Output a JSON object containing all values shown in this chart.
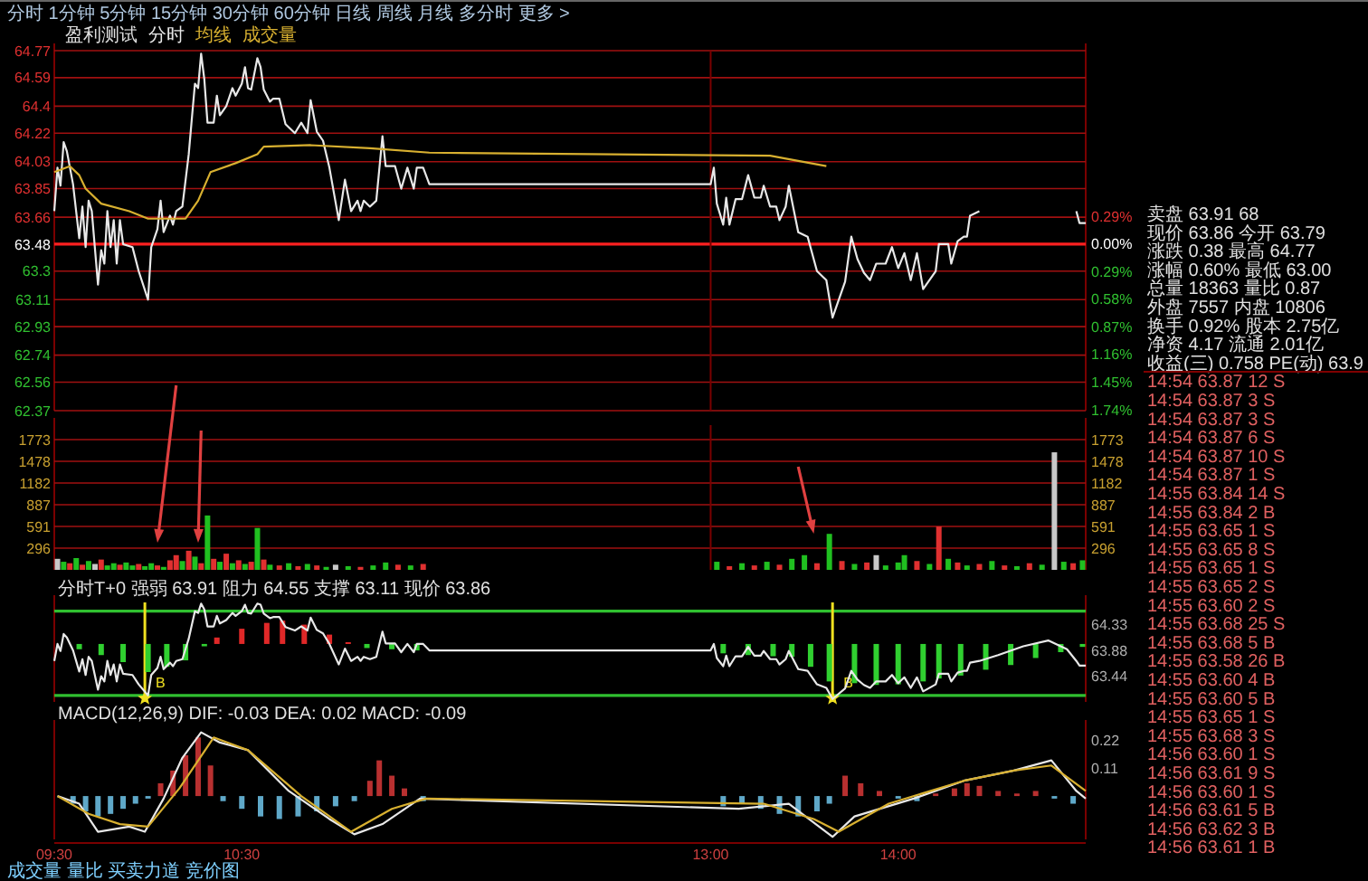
{
  "chart_data": [
    {
      "type": "line",
      "annotations": [
        "分时 1分钟 5分钟 15分钟 30分钟 60分钟 日线 周线 月线 多分时 更多 >",
        "盈利测试",
        "成交量"
      ],
      "legend": "top left",
      "xlim": [
        9.5,
        15
      ],
      "ylim": [
        62.37,
        64.77
      ],
      "yticks": [
        64.77,
        64.59,
        64.4,
        64.22,
        64.03,
        63.85,
        63.66,
        63.48,
        63.3,
        63.11,
        62.93,
        62.74,
        62.56,
        62.37
      ],
      "y2lim": [
        -1.75,
        2.03
      ],
      "y2ticks": [
        {
          "value": 0.29,
          "label": "0.29%"
        },
        {
          "value": 0,
          "label": "0.00%"
        },
        {
          "value": -0.29,
          "label": "0.29%"
        },
        {
          "value": -0.58,
          "label": "0.58%"
        },
        {
          "value": -0.87,
          "label": "0.87%"
        },
        {
          "value": -1.16,
          "label": "1.16%"
        },
        {
          "value": -1.45,
          "label": "1.45%"
        },
        {
          "value": -1.74,
          "label": "1.74%"
        }
      ],
      "grid": "y",
      "tick_labels": "y",
      "ref_lines": [
        {
          "axis": "y",
          "value": 63.48,
          "color": "#ff2020"
        },
        {
          "axis": "x",
          "value": 13,
          "color": "#7a0000"
        }
      ],
      "series": [
        {
          "name": "分时",
          "type": "line",
          "color": "#e8e8e8",
          "x": [
            9.5,
            9.517,
            9.533,
            9.55,
            9.567,
            9.6,
            9.633,
            9.65,
            9.667,
            9.683,
            9.7,
            9.733,
            9.75,
            9.767,
            9.783,
            9.8,
            9.817,
            9.833,
            9.85,
            9.867,
            9.917,
            9.95,
            10,
            10.017,
            10.05,
            10.067,
            10.083,
            10.117,
            10.133,
            10.15,
            10.183,
            10.217,
            10.233,
            10.25,
            10.267,
            10.283,
            10.3,
            10.317,
            10.35,
            10.367,
            10.383,
            10.417,
            10.45,
            10.467,
            10.5,
            10.517,
            10.533,
            10.55,
            10.583,
            10.6,
            10.617,
            10.65,
            10.667,
            10.7,
            10.733,
            10.783,
            10.817,
            10.85,
            10.867,
            10.9,
            10.933,
            10.967,
            11.017,
            11.05,
            11.083,
            11.117,
            11.133,
            11.15,
            11.183,
            11.217,
            11.25,
            11.267,
            11.317,
            11.35,
            11.383,
            11.417,
            11.433,
            11.467,
            11.5,
            13,
            13.017,
            13.033,
            13.067,
            13.083,
            13.1,
            13.133,
            13.167,
            13.2,
            13.233,
            13.267,
            13.283,
            13.317,
            13.35,
            13.367,
            13.4,
            13.417,
            13.467,
            13.517,
            13.567,
            13.617,
            13.65,
            13.717,
            13.75,
            13.783,
            13.817,
            13.85,
            13.883,
            13.933,
            13.967,
            14,
            14.033,
            14.067,
            14.1,
            14.133,
            14.2,
            14.217,
            14.267,
            14.283,
            14.317,
            14.35,
            14.367,
            14.383,
            14.433,
            14.667,
            14.95,
            14.967,
            15
          ],
          "values": [
            63.7,
            63.99,
            63.87,
            64.16,
            64.1,
            63.88,
            63.52,
            63.73,
            63.46,
            63.77,
            63.7,
            63.21,
            63.44,
            63.35,
            63.7,
            63.46,
            63.64,
            63.35,
            63.64,
            63.48,
            63.46,
            63.3,
            63.11,
            63.46,
            63.58,
            63.77,
            63.56,
            63.67,
            63.61,
            63.7,
            63.73,
            64.08,
            64.31,
            64.55,
            64.52,
            64.75,
            64.58,
            64.29,
            64.29,
            64.47,
            64.34,
            64.4,
            64.52,
            64.47,
            64.55,
            64.66,
            64.52,
            64.51,
            64.72,
            64.66,
            64.51,
            64.43,
            64.45,
            64.45,
            64.28,
            64.22,
            64.29,
            64.22,
            64.44,
            64.23,
            64.17,
            63.99,
            63.64,
            63.91,
            63.7,
            63.77,
            63.7,
            63.77,
            63.73,
            63.77,
            64.2,
            64.0,
            64.0,
            63.85,
            63.99,
            63.85,
            63.99,
            63.99,
            63.88,
            63.88,
            63.99,
            63.75,
            63.61,
            63.79,
            63.61,
            63.78,
            63.78,
            63.94,
            63.79,
            63.79,
            63.87,
            63.73,
            63.73,
            63.64,
            63.73,
            63.87,
            63.56,
            63.53,
            63.3,
            63.24,
            62.99,
            63.23,
            63.53,
            63.38,
            63.29,
            63.24,
            63.35,
            63.35,
            63.46,
            63.32,
            63.42,
            63.24,
            63.42,
            63.18,
            63.3,
            63.48,
            63.48,
            63.35,
            63.5,
            63.53,
            63.53,
            63.67,
            63.7,
            null,
            63.7,
            63.62,
            63.62
          ]
        },
        {
          "name": "均线",
          "type": "line",
          "color": "#d8b030",
          "x": [
            9.5,
            9.583,
            9.633,
            9.667,
            9.75,
            9.9,
            10,
            10.2,
            10.267,
            10.333,
            10.467,
            10.583,
            10.617,
            10.867,
            11.183,
            11.5,
            13.317,
            13.617
          ],
          "values": [
            63.96,
            64.0,
            63.94,
            63.85,
            63.75,
            63.7,
            63.65,
            63.65,
            63.77,
            63.96,
            64.02,
            64.08,
            64.13,
            64.14,
            64.12,
            64.09,
            64.07,
            64.0
          ]
        }
      ]
    },
    {
      "type": "bar",
      "xlim": [
        9.5,
        15
      ],
      "ylim": [
        0,
        1970
      ],
      "yticks": [
        296,
        591,
        887,
        1182,
        1478,
        1773
      ],
      "y2lim": [
        0,
        1970
      ],
      "y2ticks": [
        296,
        591,
        887,
        1182,
        1478,
        1773
      ],
      "grid": "y",
      "tick_labels": "y",
      "ref_lines": [
        {
          "axis": "x",
          "value": 13,
          "color": "#7a0000"
        }
      ],
      "series": [
        {
          "type": "bar",
          "x": [
            9.517,
            9.55,
            9.583,
            9.617,
            9.65,
            9.683,
            9.717,
            9.75,
            9.783,
            9.817,
            9.85,
            9.883,
            9.917,
            9.95,
            9.983,
            10.017,
            10.05,
            10.083,
            10.117,
            10.15,
            10.183,
            10.217,
            10.25,
            10.283,
            10.317,
            10.35,
            10.383,
            10.417,
            10.45,
            10.483,
            10.517,
            10.55,
            10.583,
            10.617,
            10.65,
            10.7,
            10.75,
            10.8,
            10.85,
            10.9,
            10.95,
            11,
            11.067,
            11.133,
            11.2,
            11.267,
            11.333,
            11.4,
            11.467,
            13.033,
            13.1,
            13.167,
            13.233,
            13.3,
            13.367,
            13.433,
            13.5,
            13.567,
            13.633,
            13.7,
            13.767,
            13.833,
            13.883,
            13.933,
            14,
            14.033,
            14.1,
            14.167,
            14.217,
            14.267,
            14.317,
            14.367,
            14.433,
            14.5,
            14.567,
            14.633,
            14.7,
            14.767,
            14.833,
            14.883,
            14.933,
            14.983
          ],
          "values": [
            150,
            110,
            90,
            160,
            70,
            120,
            80,
            140,
            60,
            90,
            70,
            100,
            60,
            80,
            50,
            90,
            60,
            40,
            130,
            200,
            120,
            260,
            180,
            90,
            740,
            150,
            110,
            220,
            90,
            130,
            80,
            110,
            570,
            140,
            70,
            60,
            90,
            50,
            80,
            60,
            40,
            70,
            50,
            40,
            60,
            100,
            70,
            60,
            80,
            110,
            50,
            90,
            60,
            110,
            70,
            150,
            200,
            90,
            490,
            120,
            80,
            100,
            200,
            60,
            100,
            200,
            120,
            80,
            590,
            150,
            100,
            60,
            80,
            120,
            60,
            50,
            90,
            70,
            1600,
            110,
            90,
            130
          ],
          "colors": [
            "#c8c8c8",
            "#20c020",
            "#e03030",
            "#20c020",
            "#e03030",
            "#20c020",
            "#c8c8c8",
            "#e03030",
            "#20c020",
            "#20c020",
            "#e03030",
            "#20c020",
            "#20c020",
            "#e03030",
            "#20c020",
            "#20c020",
            "#e03030",
            "#20c020",
            "#e03030",
            "#e03030",
            "#20c020",
            "#e03030",
            "#20c020",
            "#e03030",
            "#20c020",
            "#e03030",
            "#20c020",
            "#e03030",
            "#20c020",
            "#e03030",
            "#20c020",
            "#e03030",
            "#20c020",
            "#e03030",
            "#20c020",
            "#e03030",
            "#20c020",
            "#e03030",
            "#20c020",
            "#e03030",
            "#20c020",
            "#c8c8c8",
            "#20c020",
            "#e03030",
            "#20c020",
            "#20c020",
            "#e03030",
            "#20c020",
            "#e03030",
            "#20c020",
            "#e03030",
            "#20c020",
            "#e03030",
            "#20c020",
            "#e03030",
            "#20c020",
            "#20c020",
            "#e03030",
            "#20c020",
            "#e03030",
            "#20c020",
            "#e03030",
            "#c8c8c8",
            "#20c020",
            "#20c020",
            "#20c020",
            "#e03030",
            "#20c020",
            "#e03030",
            "#20c020",
            "#e03030",
            "#20c020",
            "#e03030",
            "#20c020",
            "#e03030",
            "#20c020",
            "#e03030",
            "#20c020",
            "#c8c8c8",
            "#20c020",
            "#e03030",
            "#20c020"
          ]
        }
      ]
    },
    {
      "type": "bar",
      "title": "分时T+0 强弱 63.91 阻力 64.55 支撑 63.11 现价 63.86",
      "xlim": [
        9.5,
        15
      ],
      "y2lim": [
        63.0,
        64.7
      ],
      "y2ticks": [
        64.33,
        63.88,
        63.44
      ],
      "tick_labels": "y",
      "ref_lines": [
        {
          "axis": "y2",
          "value": 64.55,
          "color": "#30c030"
        },
        {
          "axis": "y2",
          "value": 63.11,
          "color": "#30c030"
        },
        {
          "axis": "x",
          "value": 9.983,
          "label": "B",
          "color": "#f0e020"
        },
        {
          "axis": "x",
          "value": 13.65,
          "label": "B",
          "color": "#f0e020"
        }
      ],
      "series": [
        {
          "type": "bar",
          "axis": "y2",
          "x": [
            9.633,
            9.75,
            9.867,
            10,
            10.1,
            10.2,
            10.3,
            10.367,
            10.5,
            10.633,
            10.717,
            10.833,
            10.967,
            11.067,
            11.167,
            11.3,
            11.433,
            13.067,
            13.2,
            13.333,
            13.433,
            13.533,
            13.633,
            13.767,
            13.883,
            14,
            14.133,
            14.217,
            14.333,
            14.467,
            14.6,
            14.733,
            14.867,
            14.983
          ],
          "base": [
            63.99,
            63.99,
            63.99,
            63.99,
            63.99,
            63.99,
            63.99,
            63.99,
            63.99,
            63.99,
            63.99,
            63.99,
            63.99,
            63.99,
            63.99,
            63.99,
            63.99,
            63.99,
            63.99,
            63.99,
            63.99,
            63.99,
            63.99,
            63.99,
            63.99,
            63.99,
            63.99,
            63.99,
            63.99,
            63.99,
            63.99,
            63.99,
            63.99,
            63.99
          ],
          "values": [
            -0.09,
            -0.19,
            -0.31,
            -0.48,
            -0.39,
            -0.28,
            -0.04,
            0.11,
            0.26,
            0.36,
            0.4,
            0.33,
            0.16,
            0.03,
            -0.07,
            -0.09,
            -0.11,
            -0.16,
            -0.19,
            -0.21,
            -0.22,
            -0.39,
            -0.64,
            -0.67,
            -0.7,
            -0.69,
            -0.64,
            -0.59,
            -0.54,
            -0.44,
            -0.36,
            -0.24,
            -0.14,
            -0.05
          ],
          "colors": [
            "#30d030",
            "#30d030",
            "#30d030",
            "#30d030",
            "#30d030",
            "#30d030",
            "#30d030",
            "#e02828",
            "#e02828",
            "#e02828",
            "#e02828",
            "#e02828",
            "#e02828",
            "#e02828",
            "#30d030",
            "#30d030",
            "#30d030",
            "#30d030",
            "#30d030",
            "#30d030",
            "#30d030",
            "#30d030",
            "#30d030",
            "#30d030",
            "#30d030",
            "#30d030",
            "#30d030",
            "#30d030",
            "#30d030",
            "#30d030",
            "#30d030",
            "#30d030",
            "#30d030",
            "#30d030"
          ]
        },
        {
          "type": "line",
          "axis": "y2",
          "color": "#e8e8e8",
          "x": [
            9.5,
            9.517,
            9.533,
            9.55,
            9.567,
            9.6,
            9.633,
            9.65,
            9.667,
            9.683,
            9.7,
            9.733,
            9.75,
            9.767,
            9.783,
            9.8,
            9.817,
            9.833,
            9.85,
            9.867,
            9.917,
            9.95,
            10,
            10.017,
            10.05,
            10.067,
            10.083,
            10.117,
            10.133,
            10.15,
            10.183,
            10.217,
            10.233,
            10.25,
            10.267,
            10.283,
            10.3,
            10.317,
            10.35,
            10.367,
            10.383,
            10.417,
            10.45,
            10.467,
            10.5,
            10.517,
            10.533,
            10.55,
            10.583,
            10.6,
            10.617,
            10.65,
            10.667,
            10.7,
            10.733,
            10.783,
            10.817,
            10.85,
            10.867,
            10.9,
            10.933,
            10.967,
            11.017,
            11.05,
            11.083,
            11.117,
            11.133,
            11.15,
            11.183,
            11.217,
            11.25,
            11.267,
            11.317,
            11.35,
            11.383,
            11.417,
            11.433,
            11.467,
            11.5,
            13,
            13.017,
            13.033,
            13.067,
            13.083,
            13.1,
            13.133,
            13.167,
            13.2,
            13.233,
            13.267,
            13.283,
            13.317,
            13.35,
            13.367,
            13.4,
            13.417,
            13.467,
            13.517,
            13.567,
            13.617,
            13.65,
            13.717,
            13.75,
            13.783,
            13.817,
            13.85,
            13.883,
            13.933,
            13.967,
            14,
            14.033,
            14.067,
            14.1,
            14.133,
            14.2,
            14.217,
            14.267,
            14.283,
            14.317,
            14.35,
            14.367,
            14.383,
            14.433,
            14.533,
            14.667,
            14.8,
            14.9,
            14.95,
            14.967,
            15
          ],
          "values": [
            63.7,
            63.99,
            63.87,
            64.16,
            64.1,
            63.88,
            63.52,
            63.73,
            63.46,
            63.77,
            63.7,
            63.21,
            63.44,
            63.35,
            63.7,
            63.46,
            63.64,
            63.35,
            63.64,
            63.48,
            63.46,
            63.3,
            63.11,
            63.46,
            63.58,
            63.77,
            63.56,
            63.67,
            63.61,
            63.7,
            63.73,
            64.08,
            64.31,
            64.55,
            64.52,
            64.68,
            64.58,
            64.29,
            64.29,
            64.47,
            64.34,
            64.4,
            64.52,
            64.47,
            64.55,
            64.66,
            64.52,
            64.51,
            64.68,
            64.66,
            64.51,
            64.43,
            64.45,
            64.45,
            64.28,
            64.22,
            64.29,
            64.22,
            64.44,
            64.23,
            64.17,
            63.99,
            63.64,
            63.91,
            63.7,
            63.77,
            63.7,
            63.77,
            63.73,
            63.77,
            64.2,
            64.0,
            64.0,
            63.85,
            63.99,
            63.85,
            63.99,
            63.99,
            63.88,
            63.88,
            63.99,
            63.75,
            63.61,
            63.79,
            63.61,
            63.78,
            63.78,
            63.94,
            63.79,
            63.79,
            63.87,
            63.73,
            63.73,
            63.64,
            63.73,
            63.87,
            63.56,
            63.53,
            63.3,
            63.24,
            63.05,
            63.23,
            63.53,
            63.38,
            63.29,
            63.24,
            63.35,
            63.35,
            63.46,
            63.32,
            63.42,
            63.24,
            63.42,
            63.18,
            63.3,
            63.48,
            63.48,
            63.35,
            63.5,
            63.53,
            63.53,
            63.67,
            63.7,
            63.8,
            63.95,
            64.05,
            63.9,
            63.7,
            63.62,
            63.62
          ]
        }
      ]
    },
    {
      "type": "bar",
      "title": "MACD(12,26,9) DIF: -0.03 DEA: 0.02 MACD: -0.09",
      "annotations": [
        "成交量 量比 买卖力道 竞价图"
      ],
      "xlim": [
        9.5,
        15
      ],
      "xticks": [
        {
          "value": 9.5,
          "label": "09:30"
        },
        {
          "value": 10.5,
          "label": "10:30"
        },
        {
          "value": 13,
          "label": "13:00"
        },
        {
          "value": 14,
          "label": "14:00"
        }
      ],
      "y2lim": [
        -0.17,
        0.27
      ],
      "y2ticks": [
        0.22,
        0.11
      ],
      "series": [
        {
          "type": "bar",
          "axis": "y2",
          "x": [
            9.6,
            9.667,
            9.733,
            9.8,
            9.867,
            9.933,
            10,
            10.067,
            10.133,
            10.2,
            10.267,
            10.333,
            10.4,
            10.5,
            10.6,
            10.7,
            10.8,
            10.9,
            11,
            11.1,
            11.183,
            11.233,
            11.3,
            11.367,
            11.467,
            13.067,
            13.167,
            13.267,
            13.367,
            13.467,
            13.567,
            13.633,
            13.717,
            13.8,
            13.9,
            14,
            14.1,
            14.2,
            14.3,
            14.367,
            14.433,
            14.533,
            14.633,
            14.733,
            14.833,
            14.933
          ],
          "values": [
            -0.03,
            -0.06,
            -0.08,
            -0.07,
            -0.05,
            -0.03,
            -0.01,
            0.05,
            0.1,
            0.16,
            0.23,
            0.12,
            -0.02,
            -0.05,
            -0.08,
            -0.09,
            -0.08,
            -0.06,
            -0.04,
            -0.02,
            0.06,
            0.14,
            0.08,
            0.03,
            -0.02,
            -0.04,
            -0.03,
            -0.05,
            -0.07,
            -0.08,
            -0.06,
            -0.03,
            0.08,
            0.05,
            0.02,
            -0.01,
            -0.02,
            0.01,
            0.03,
            0.05,
            0.04,
            0.02,
            0.01,
            0.02,
            -0.01,
            -0.03
          ],
          "colors": [
            "#5fa8c8",
            "#5fa8c8",
            "#5fa8c8",
            "#5fa8c8",
            "#5fa8c8",
            "#5fa8c8",
            "#5fa8c8",
            "#b83030",
            "#b83030",
            "#b83030",
            "#b83030",
            "#b83030",
            "#5fa8c8",
            "#5fa8c8",
            "#5fa8c8",
            "#5fa8c8",
            "#5fa8c8",
            "#5fa8c8",
            "#5fa8c8",
            "#5fa8c8",
            "#b83030",
            "#b83030",
            "#b83030",
            "#b83030",
            "#5fa8c8",
            "#5fa8c8",
            "#5fa8c8",
            "#5fa8c8",
            "#5fa8c8",
            "#5fa8c8",
            "#5fa8c8",
            "#5fa8c8",
            "#b83030",
            "#b83030",
            "#b83030",
            "#5fa8c8",
            "#5fa8c8",
            "#b83030",
            "#b83030",
            "#b83030",
            "#b83030",
            "#b83030",
            "#b83030",
            "#b83030",
            "#5fa8c8",
            "#5fa8c8"
          ]
        },
        {
          "type": "line",
          "axis": "y2",
          "color": "#e8e8e8",
          "x": [
            9.517,
            9.633,
            9.733,
            9.9,
            9.983,
            10.083,
            10.183,
            10.283,
            10.383,
            10.533,
            10.75,
            10.967,
            11.1,
            11.25,
            11.45,
            13.15,
            13.417,
            13.65,
            13.767,
            14.083,
            14.35,
            14.617,
            14.817,
            14.95,
            15
          ],
          "values": [
            0.0,
            -0.03,
            -0.14,
            -0.12,
            -0.14,
            -0.01,
            0.15,
            0.25,
            0.21,
            0.18,
            0.02,
            -0.09,
            -0.15,
            -0.11,
            -0.01,
            -0.05,
            -0.03,
            -0.16,
            -0.08,
            -0.01,
            0.06,
            0.1,
            0.14,
            0.02,
            -0.01
          ]
        },
        {
          "type": "line",
          "axis": "y2",
          "color": "#d8b030",
          "x": [
            9.517,
            9.683,
            9.85,
            10,
            10.167,
            10.35,
            10.533,
            10.817,
            11.083,
            11.3,
            11.483,
            13.283,
            13.55,
            13.683,
            13.95,
            14.35,
            14.617,
            14.817,
            15
          ],
          "values": [
            0,
            -0.07,
            -0.11,
            -0.12,
            0.03,
            0.23,
            0.18,
            0,
            -0.14,
            -0.05,
            -0.01,
            -0.03,
            -0.09,
            -0.14,
            -0.03,
            0.06,
            0.1,
            0.12,
            0.02
          ]
        }
      ]
    },
    {
      "type": "other",
      "annotations": [
        "卖盘 63.91 68",
        "现价 63.86 今开 63.79",
        "涨跌 0.38 最高 64.77",
        "涨幅 0.60% 最低 63.00",
        "总量 18363 量比 0.87",
        "外盘 7557 内盘 10806",
        "换手 0.92% 股本 2.75亿",
        "净资 4.17 流通 2.01亿",
        "收益(三) 0.758 PE(动) 63.9",
        "14:54 63.87 12 S",
        "14:54 63.87 3 S",
        "14:54 63.87 3 S",
        "14:54 63.87 6 S",
        "14:54 63.87 10 S",
        "14:54 63.87 1 S",
        "14:55 63.84 14 S",
        "14:55 63.84 2 B",
        "14:55 63.65 1 S",
        "14:55 63.65 8 S",
        "14:55 63.65 1 S",
        "14:55 63.65 2 S",
        "14:55 63.60 2 S",
        "14:55 63.68 25 S",
        "14:55 63.68 5 B",
        "14:55 63.58 26 B",
        "14:55 63.60 4 B",
        "14:55 63.60 5 B",
        "14:55 63.65 1 S",
        "14:55 63.68 3 S",
        "14:56 63.60 1 S",
        "14:56 63.61 9 S",
        "14:56 63.60 1 S",
        "14:56 63.61 5 B",
        "14:56 63.62 3 B",
        "14:56 63.61 1 B"
      ]
    }
  ]
}
